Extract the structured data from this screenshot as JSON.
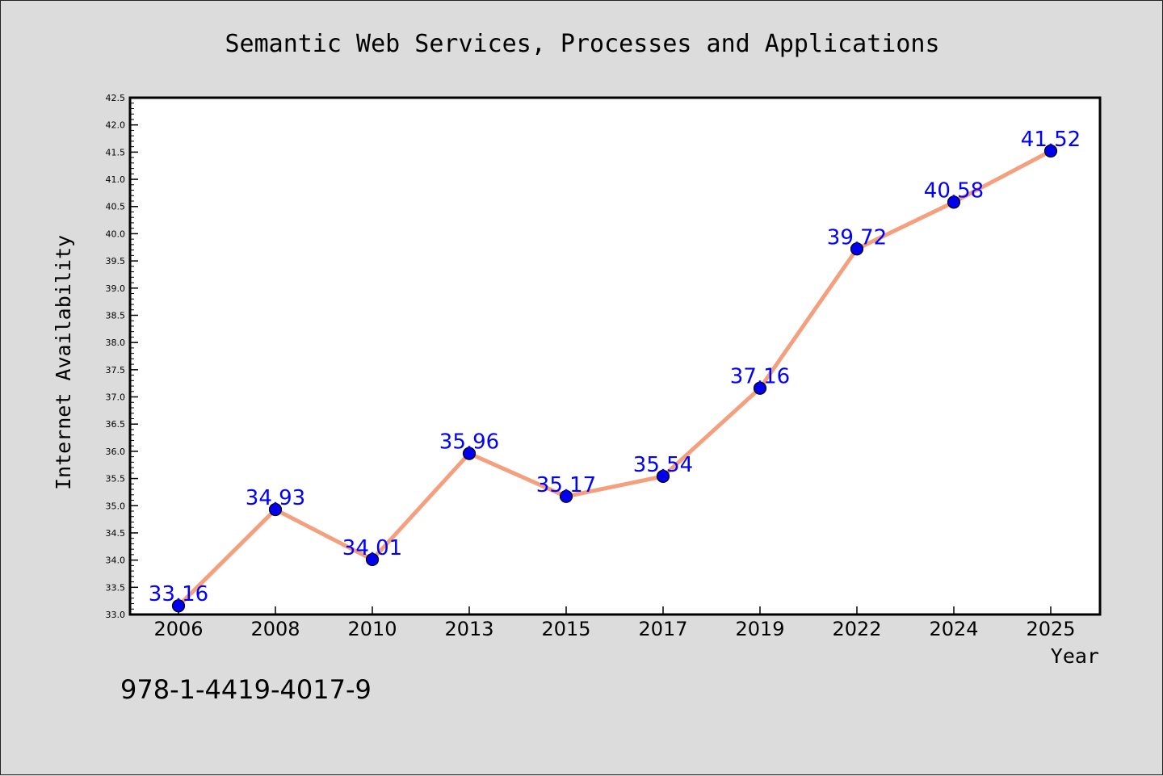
{
  "chart_data": {
    "type": "line",
    "title": "Semantic Web Services, Processes and Applications",
    "xlabel": "Year",
    "ylabel": "Internet Availability",
    "categories": [
      "2006",
      "2008",
      "2010",
      "2013",
      "2015",
      "2017",
      "2019",
      "2022",
      "2024",
      "2025"
    ],
    "series": [
      {
        "values": [
          33.16,
          34.93,
          34.01,
          35.96,
          35.17,
          35.54,
          37.16,
          39.72,
          40.58,
          41.52
        ],
        "data_labels": [
          "33.16",
          "34.93",
          "34.01",
          "35.96",
          "35.17",
          "35.54",
          "37.16",
          "39.72",
          "40.58",
          "41.52"
        ]
      }
    ],
    "ylim": [
      33.0,
      42.5
    ],
    "y_ticks": [
      "33.0",
      "33.5",
      "34.0",
      "34.5",
      "35.0",
      "35.5",
      "36.0",
      "36.5",
      "37.0",
      "37.5",
      "38.0",
      "38.5",
      "39.0",
      "39.5",
      "40.0",
      "40.5",
      "41.0",
      "41.5",
      "42.0",
      "42.5"
    ],
    "grid": false,
    "legend": "none",
    "colors": {
      "line": "#f4a07e",
      "marker": "#0000ee",
      "label": "#0000ff",
      "background": "#dcdcdc",
      "plot_background": "#ffffff"
    }
  },
  "footer": {
    "isbn": "978-1-4419-4017-9"
  }
}
